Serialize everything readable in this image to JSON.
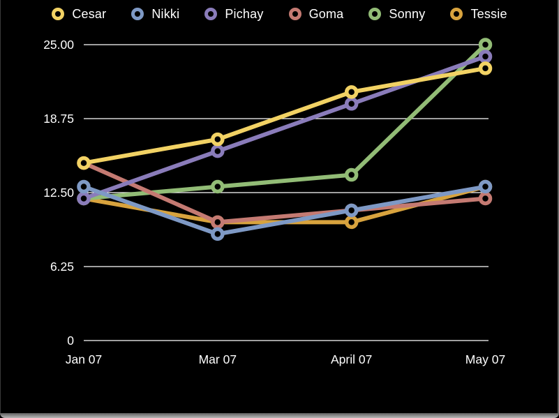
{
  "window": {
    "background": "#000000",
    "frame_color": "#9a9a9a"
  },
  "chart_data": {
    "type": "line",
    "title": "",
    "xlabel": "",
    "ylabel": "",
    "x_labels": [
      "Jan 07",
      "Mar 07",
      "April 07",
      "May 07"
    ],
    "y_ticks": [
      0,
      6.25,
      12.5,
      18.75,
      25
    ],
    "y_tick_labels": [
      "0",
      "6.25",
      "12.50",
      "18.75",
      "25.00"
    ],
    "ylim": [
      0,
      25
    ],
    "grid": true,
    "grid_color": "#ffffff",
    "text_color": "#ffffff",
    "legend_position": "top",
    "marker_style": "ring",
    "series": [
      {
        "name": "Cesar",
        "color": "#f2d264",
        "values": [
          15,
          17,
          21,
          23
        ]
      },
      {
        "name": "Nikki",
        "color": "#7e99c5",
        "values": [
          13,
          9,
          11,
          13
        ]
      },
      {
        "name": "Pichay",
        "color": "#8a7cba",
        "values": [
          12,
          16,
          20,
          24
        ]
      },
      {
        "name": "Goma",
        "color": "#c47a72",
        "values": [
          15,
          10,
          11,
          12
        ]
      },
      {
        "name": "Sonny",
        "color": "#92bc76",
        "values": [
          12,
          13,
          14,
          25
        ]
      },
      {
        "name": "Tessie",
        "color": "#d8a33e",
        "values": [
          12,
          10,
          10,
          13
        ]
      }
    ],
    "draw_order": [
      "Tessie",
      "Sonny",
      "Goma",
      "Pichay",
      "Nikki",
      "Cesar"
    ]
  }
}
